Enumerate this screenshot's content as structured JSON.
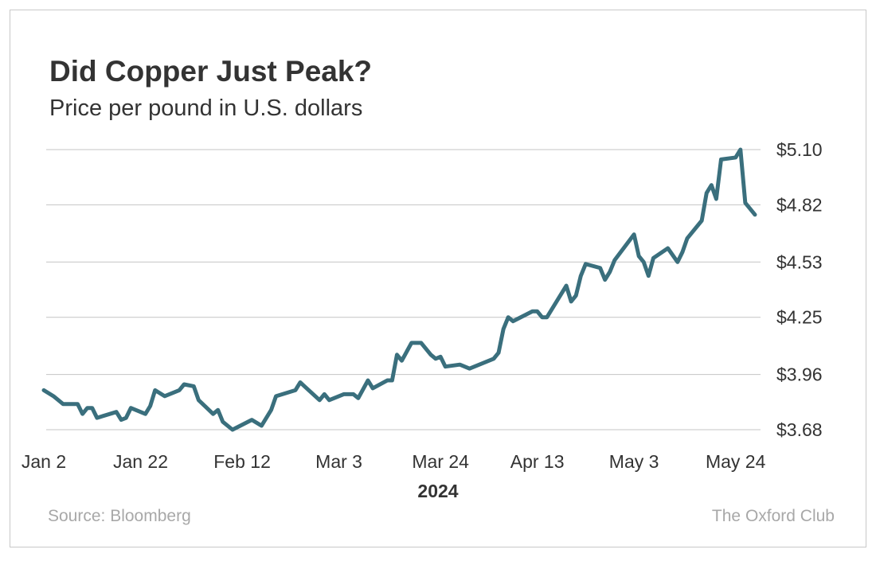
{
  "chart_data": {
    "type": "line",
    "title": "Did Copper Just Peak?",
    "subtitle": "Price per pound in U.S. dollars",
    "xlabel": "2024",
    "source": "Source: Bloomberg",
    "credit": "The Oxford Club",
    "grid": true,
    "xlim": [
      "2024-01-02",
      "2024-05-28"
    ],
    "xticks": [
      {
        "value": "2024-01-02",
        "label": "Jan 2"
      },
      {
        "value": "2024-01-22",
        "label": "Jan 22"
      },
      {
        "value": "2024-02-12",
        "label": "Feb 12"
      },
      {
        "value": "2024-03-03",
        "label": "Mar 3"
      },
      {
        "value": "2024-03-24",
        "label": "Mar 24"
      },
      {
        "value": "2024-04-13",
        "label": "Apr 13"
      },
      {
        "value": "2024-05-03",
        "label": "May 3"
      },
      {
        "value": "2024-05-24",
        "label": "May 24"
      }
    ],
    "ylim": [
      3.68,
      5.1
    ],
    "yticks": [
      {
        "value": 3.68,
        "label": "$3.68"
      },
      {
        "value": 3.96,
        "label": "$3.96"
      },
      {
        "value": 4.25,
        "label": "$4.25"
      },
      {
        "value": 4.53,
        "label": "$4.53"
      },
      {
        "value": 4.82,
        "label": "$4.82"
      },
      {
        "value": 5.1,
        "label": "$5.10"
      }
    ],
    "x": [
      "2024-01-02",
      "2024-01-04",
      "2024-01-06",
      "2024-01-09",
      "2024-01-10",
      "2024-01-11",
      "2024-01-12",
      "2024-01-13",
      "2024-01-17",
      "2024-01-18",
      "2024-01-19",
      "2024-01-20",
      "2024-01-23",
      "2024-01-24",
      "2024-01-25",
      "2024-01-27",
      "2024-01-30",
      "2024-01-31",
      "2024-02-02",
      "2024-02-03",
      "2024-02-06",
      "2024-02-07",
      "2024-02-08",
      "2024-02-10",
      "2024-02-14",
      "2024-02-16",
      "2024-02-18",
      "2024-02-19",
      "2024-02-23",
      "2024-02-24",
      "2024-02-28",
      "2024-02-29",
      "2024-03-01",
      "2024-03-04",
      "2024-03-06",
      "2024-03-07",
      "2024-03-09",
      "2024-03-10",
      "2024-03-13",
      "2024-03-14",
      "2024-03-15",
      "2024-03-16",
      "2024-03-18",
      "2024-03-20",
      "2024-03-22",
      "2024-03-23",
      "2024-03-24",
      "2024-03-25",
      "2024-03-28",
      "2024-03-30",
      "2024-04-04",
      "2024-04-05",
      "2024-04-06",
      "2024-04-07",
      "2024-04-08",
      "2024-04-12",
      "2024-04-13",
      "2024-04-14",
      "2024-04-15",
      "2024-04-19",
      "2024-04-20",
      "2024-04-21",
      "2024-04-22",
      "2024-04-23",
      "2024-04-26",
      "2024-04-27",
      "2024-04-28",
      "2024-04-29",
      "2024-05-03",
      "2024-05-04",
      "2024-05-05",
      "2024-05-06",
      "2024-05-07",
      "2024-05-10",
      "2024-05-12",
      "2024-05-13",
      "2024-05-14",
      "2024-05-17",
      "2024-05-18",
      "2024-05-19",
      "2024-05-20",
      "2024-05-21",
      "2024-05-24",
      "2024-05-25",
      "2024-05-26",
      "2024-05-28"
    ],
    "series": [
      {
        "name": "Copper",
        "color": "#3a6f7d",
        "values": [
          3.88,
          3.85,
          3.81,
          3.81,
          3.76,
          3.79,
          3.79,
          3.74,
          3.77,
          3.73,
          3.74,
          3.79,
          3.76,
          3.8,
          3.88,
          3.85,
          3.88,
          3.91,
          3.9,
          3.83,
          3.76,
          3.78,
          3.72,
          3.68,
          3.73,
          3.7,
          3.78,
          3.85,
          3.88,
          3.92,
          3.83,
          3.86,
          3.83,
          3.86,
          3.86,
          3.84,
          3.93,
          3.89,
          3.93,
          3.93,
          4.06,
          4.03,
          4.12,
          4.12,
          4.06,
          4.04,
          4.05,
          4.0,
          4.01,
          3.99,
          4.04,
          4.07,
          4.19,
          4.25,
          4.23,
          4.28,
          4.28,
          4.25,
          4.25,
          4.41,
          4.33,
          4.36,
          4.46,
          4.52,
          4.5,
          4.44,
          4.48,
          4.54,
          4.67,
          4.56,
          4.53,
          4.46,
          4.55,
          4.6,
          4.53,
          4.58,
          4.65,
          4.74,
          4.88,
          4.92,
          4.85,
          5.05,
          5.06,
          5.1,
          4.83,
          4.77
        ]
      }
    ]
  }
}
